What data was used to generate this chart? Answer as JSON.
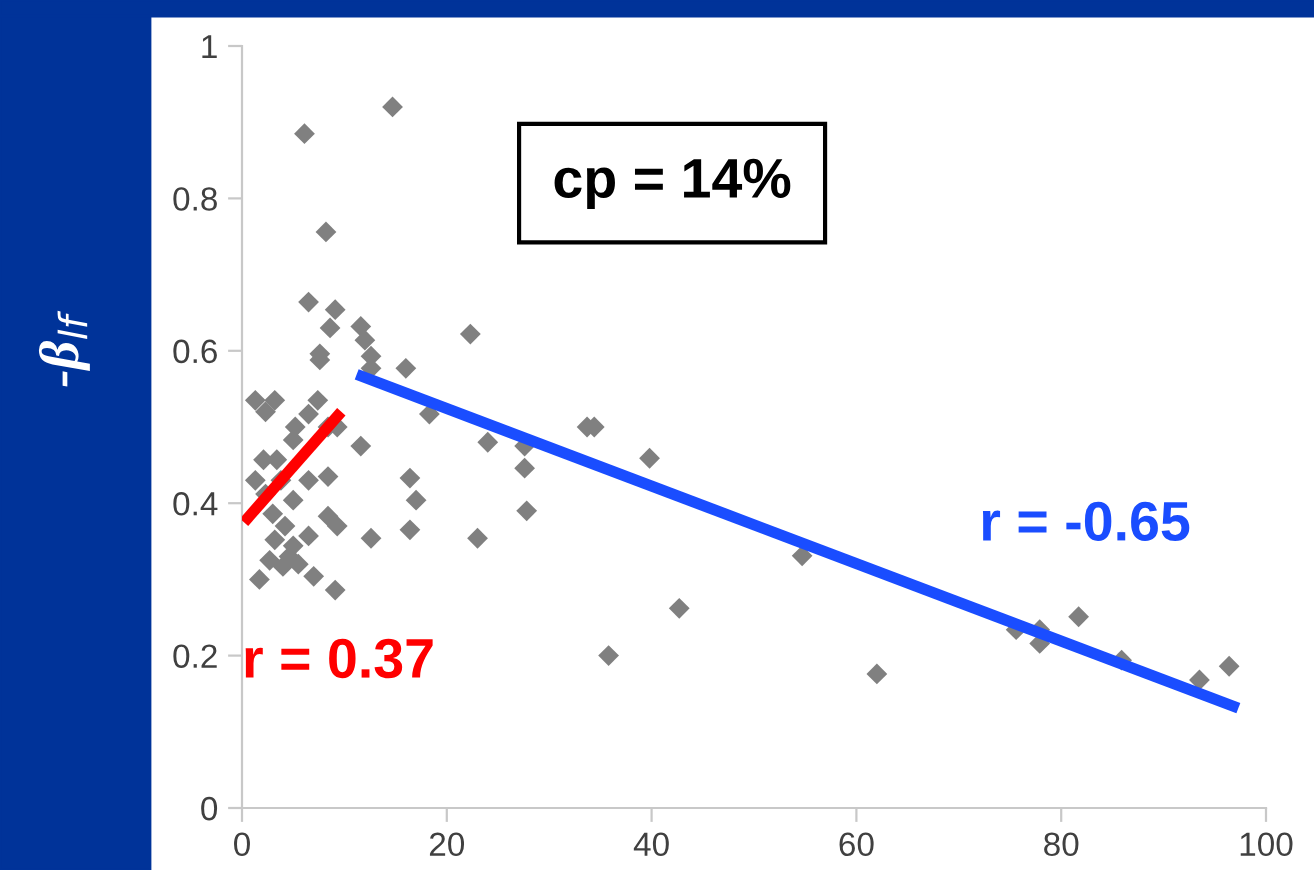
{
  "chart_data": {
    "type": "scatter",
    "ylabel": "-β$_{lf}$",
    "annotations": [
      "cp = 14%",
      "r = 0.37",
      "r = -0.65"
    ],
    "xlim": [
      0,
      100
    ],
    "xticks": [
      0,
      20,
      40,
      60,
      80,
      100
    ],
    "ylim": [
      0,
      1
    ],
    "yticks": [
      0,
      0.2,
      0.4,
      0.6,
      0.8,
      1
    ],
    "grid": false,
    "legend": false,
    "series": [
      {
        "marker": "diamond",
        "color": "#808080",
        "x": [
          6.1,
          14.7,
          8.2,
          6.5,
          9.1,
          8.6,
          11.6,
          12,
          22.3,
          7.6,
          7.6,
          12.6,
          12.6,
          16,
          18.3,
          24,
          27.6,
          27.6,
          27.8,
          23,
          16.4,
          17,
          16.4,
          12.6,
          11.6,
          35.8,
          1.3,
          3.2,
          2.3,
          1.7,
          7,
          9.1,
          7.4,
          6.5,
          5.2,
          5,
          8.4,
          9.3,
          2.1,
          3.4,
          1.3,
          3.8,
          6.5,
          8.4,
          2.3,
          5,
          3,
          4.2,
          8.4,
          9.3,
          3.2,
          5,
          6.5,
          2.7,
          4.6,
          5.5,
          4,
          33.7,
          34.4,
          39.8,
          54.7,
          42.7,
          62,
          75.6,
          77.9,
          77.9,
          81.7,
          85.9,
          93.5,
          96.4
        ],
        "values": [
          0.885,
          0.92,
          0.756,
          0.664,
          0.654,
          0.63,
          0.632,
          0.614,
          0.622,
          0.596,
          0.588,
          0.593,
          0.577,
          0.577,
          0.517,
          0.48,
          0.475,
          0.446,
          0.39,
          0.354,
          0.433,
          0.404,
          0.365,
          0.354,
          0.475,
          0.2,
          0.535,
          0.535,
          0.52,
          0.3,
          0.304,
          0.286,
          0.535,
          0.517,
          0.5,
          0.483,
          0.5,
          0.5,
          0.457,
          0.457,
          0.43,
          0.43,
          0.43,
          0.435,
          0.412,
          0.404,
          0.386,
          0.37,
          0.383,
          0.37,
          0.352,
          0.344,
          0.357,
          0.325,
          0.33,
          0.32,
          0.317,
          0.5,
          0.5,
          0.459,
          0.331,
          0.262,
          0.176,
          0.234,
          0.234,
          0.216,
          0.251,
          0.194,
          0.168,
          0.186
        ]
      },
      {
        "type": "line",
        "color": "#ff0000",
        "x": [
          0.2,
          9.7
        ],
        "values": [
          0.375,
          0.52
        ]
      },
      {
        "type": "line",
        "color": "#1a4dff",
        "x": [
          11.2,
          97.3
        ],
        "values": [
          0.569,
          0.131
        ]
      }
    ]
  }
}
